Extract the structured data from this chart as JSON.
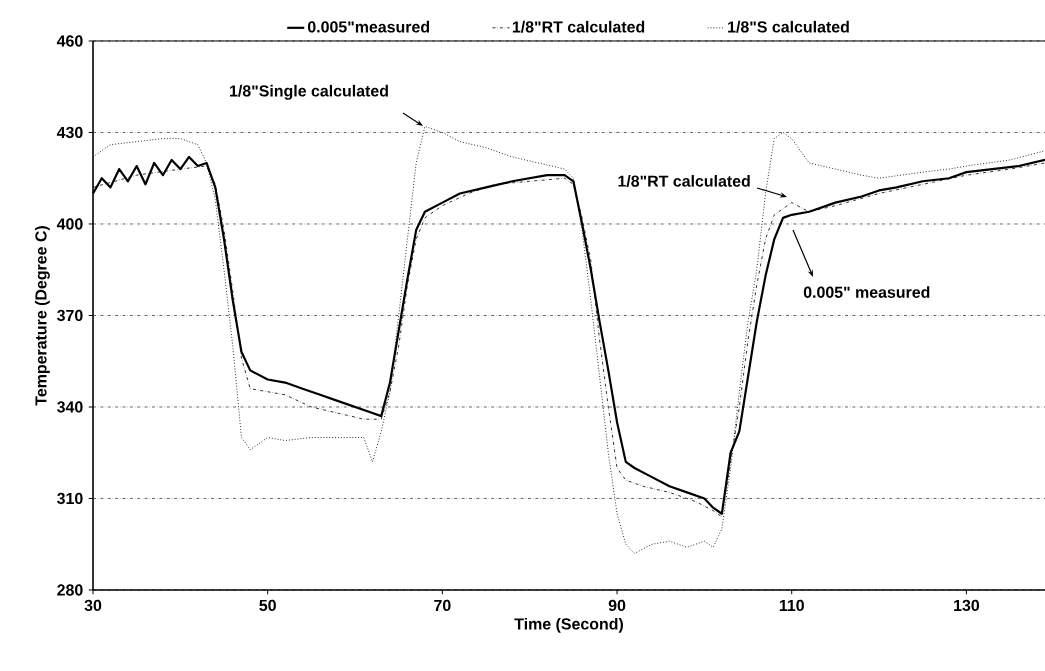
{
  "chart_data": {
    "type": "line",
    "xlabel": "Time (Second)",
    "ylabel": "Temperature (Degree C)",
    "xlim": [
      30,
      139
    ],
    "ylim": [
      280,
      460
    ],
    "xticks": [
      30,
      50,
      70,
      90,
      110,
      130
    ],
    "yticks": [
      280,
      310,
      340,
      370,
      400,
      430,
      460
    ],
    "grid": "y",
    "legend": "top",
    "marker": "none",
    "series": [
      {
        "name": "0.005\"measured",
        "color": "#000000",
        "line_style": "solid",
        "x": [
          30,
          31,
          32,
          33,
          34,
          35,
          36,
          37,
          38,
          39,
          40,
          41,
          42,
          43,
          44,
          45,
          46,
          47,
          48,
          50,
          52,
          54,
          56,
          58,
          60,
          62,
          63,
          64,
          65,
          66,
          67,
          68,
          70,
          72,
          75,
          78,
          80,
          82,
          84,
          85,
          86,
          87,
          88,
          89,
          90,
          91,
          92,
          94,
          96,
          98,
          100,
          101,
          102,
          103,
          104,
          105,
          106,
          107,
          108,
          109,
          110,
          112,
          115,
          118,
          120,
          122,
          125,
          128,
          130,
          133,
          136,
          139
        ],
        "values": [
          410,
          415,
          412,
          418,
          414,
          419,
          413,
          420,
          416,
          421,
          418,
          422,
          419,
          420,
          412,
          395,
          375,
          358,
          352,
          349,
          348,
          346,
          344,
          342,
          340,
          338,
          337,
          348,
          365,
          382,
          398,
          404,
          407,
          410,
          412,
          414,
          415,
          416,
          416,
          414,
          400,
          385,
          368,
          352,
          335,
          322,
          320,
          317,
          314,
          312,
          310,
          307,
          305,
          325,
          332,
          350,
          368,
          383,
          395,
          402,
          403,
          404,
          407,
          409,
          411,
          412,
          414,
          415,
          417,
          418,
          419,
          421
        ]
      },
      {
        "name": "1/8\"RT calculated",
        "color": "#000000",
        "line_style": "dashdot",
        "x": [
          30,
          35,
          40,
          43,
          44,
          45,
          46,
          47,
          48,
          50,
          52,
          55,
          58,
          61,
          63,
          64,
          65,
          66,
          67,
          68,
          70,
          73,
          76,
          80,
          84,
          85,
          86,
          87,
          88,
          89,
          90,
          91,
          93,
          96,
          99,
          101,
          102,
          103,
          104,
          105,
          106,
          107,
          108,
          110,
          112,
          115,
          120,
          125,
          130,
          135,
          139
        ],
        "values": [
          412,
          416,
          418,
          419,
          413,
          398,
          378,
          356,
          346,
          345,
          344,
          340,
          338,
          336,
          336,
          345,
          360,
          380,
          395,
          402,
          406,
          410,
          413,
          414,
          415,
          413,
          402,
          388,
          362,
          340,
          320,
          316,
          314,
          312,
          309,
          306,
          304,
          322,
          340,
          362,
          380,
          395,
          403,
          407,
          404,
          406,
          410,
          413,
          416,
          418,
          420
        ]
      },
      {
        "name": "1/8\"S calculated",
        "color": "#000000",
        "line_style": "dotted",
        "x": [
          30,
          32,
          35,
          38,
          40,
          42,
          43,
          44,
          45,
          46,
          47,
          48,
          50,
          52,
          55,
          58,
          61,
          62,
          63,
          64,
          65,
          66,
          67,
          68,
          70,
          72,
          75,
          78,
          81,
          84,
          85,
          86,
          87,
          88,
          89,
          90,
          91,
          92,
          94,
          96,
          98,
          100,
          101,
          102,
          103,
          104,
          105,
          106,
          107,
          108,
          109,
          110,
          112,
          115,
          118,
          120,
          125,
          128,
          130,
          135,
          139
        ],
        "values": [
          422,
          426,
          427,
          428,
          428,
          426,
          420,
          408,
          385,
          360,
          330,
          326,
          330,
          329,
          330,
          330,
          330,
          322,
          332,
          345,
          370,
          395,
          420,
          432,
          430,
          427,
          425,
          422,
          420,
          418,
          415,
          398,
          375,
          350,
          325,
          305,
          295,
          292,
          295,
          296,
          294,
          296,
          294,
          300,
          320,
          345,
          368,
          385,
          410,
          428,
          430,
          428,
          420,
          418,
          416,
          415,
          417,
          418,
          419,
          421,
          424
        ]
      }
    ],
    "annotations": [
      "1/8\"Single calculated",
      "1/8\"RT calculated",
      "0.005\" measured"
    ]
  }
}
